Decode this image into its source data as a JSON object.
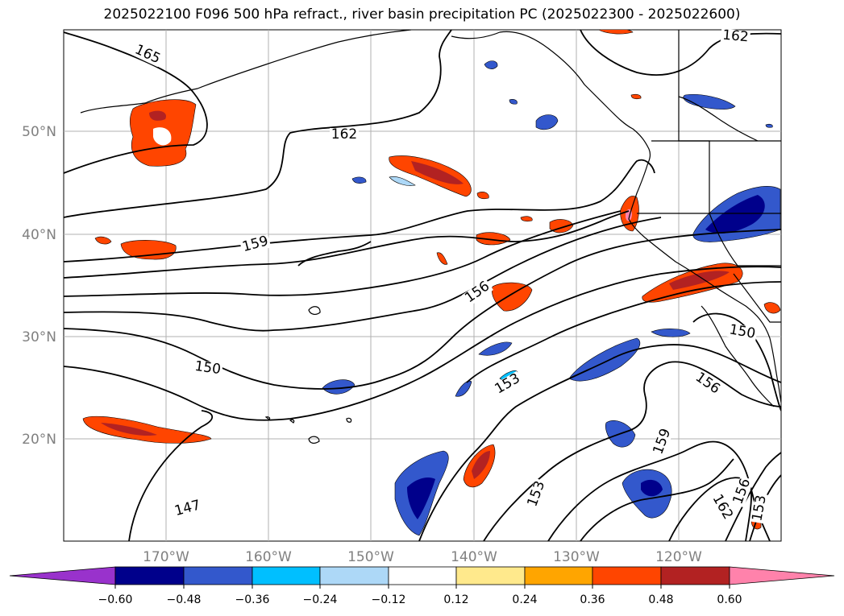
{
  "title": "2025022100 F096 500 hPa refract., river basin precipitation PC (2025022300 - 2025022600)",
  "lat_ticks": [
    "50°N",
    "40°N",
    "30°N",
    "20°N"
  ],
  "lon_ticks": [
    "170°W",
    "160°W",
    "150°W",
    "140°W",
    "130°W",
    "120°W"
  ],
  "contour_labels": [
    "165",
    "162",
    "162",
    "159",
    "156",
    "153",
    "150",
    "150",
    "156",
    "159",
    "153",
    "162",
    "156",
    "153",
    "147"
  ],
  "colorbar": {
    "tick_labels": [
      "−0.60",
      "−0.48",
      "−0.36",
      "−0.24",
      "−0.12",
      "0.12",
      "0.24",
      "0.36",
      "0.48",
      "0.60"
    ],
    "colors": [
      "#9932cc",
      "#00008b",
      "#3358cc",
      "#00bfff",
      "#add8f7",
      "#ffffff",
      "#ffe98c",
      "#ffa500",
      "#ff4500",
      "#b22222",
      "#ff82ab"
    ]
  }
}
